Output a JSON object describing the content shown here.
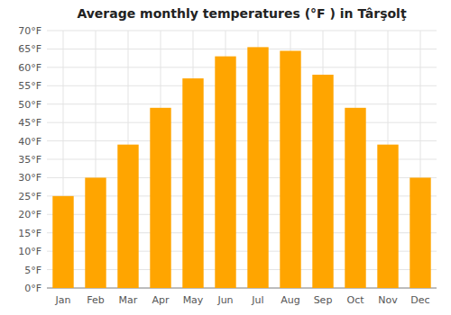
{
  "chart_data": {
    "type": "bar",
    "title": "Average monthly temperatures (°F ) in Târşolţ",
    "categories": [
      "Jan",
      "Feb",
      "Mar",
      "Apr",
      "May",
      "Jun",
      "Jul",
      "Aug",
      "Sep",
      "Oct",
      "Nov",
      "Dec"
    ],
    "values": [
      25,
      30,
      39,
      49,
      57,
      63,
      65.5,
      64.5,
      58,
      49,
      39,
      30
    ],
    "color": "#FFA500",
    "ylim": [
      0,
      70
    ],
    "yticks": [
      {
        "value": 0,
        "label": "0°F"
      },
      {
        "value": 5,
        "label": "5°F"
      },
      {
        "value": 10,
        "label": "10°F"
      },
      {
        "value": 15,
        "label": "15°F"
      },
      {
        "value": 20,
        "label": "20°F"
      },
      {
        "value": 25,
        "label": "25°F"
      },
      {
        "value": 30,
        "label": "30°F"
      },
      {
        "value": 35,
        "label": "35°F"
      },
      {
        "value": 40,
        "label": "40°F"
      },
      {
        "value": 45,
        "label": "45°F"
      },
      {
        "value": 50,
        "label": "50°F"
      },
      {
        "value": 55,
        "label": "55°F"
      },
      {
        "value": 60,
        "label": "60°F"
      },
      {
        "value": 65,
        "label": "65°F"
      },
      {
        "value": 70,
        "label": "70°F"
      }
    ],
    "grid": true
  }
}
